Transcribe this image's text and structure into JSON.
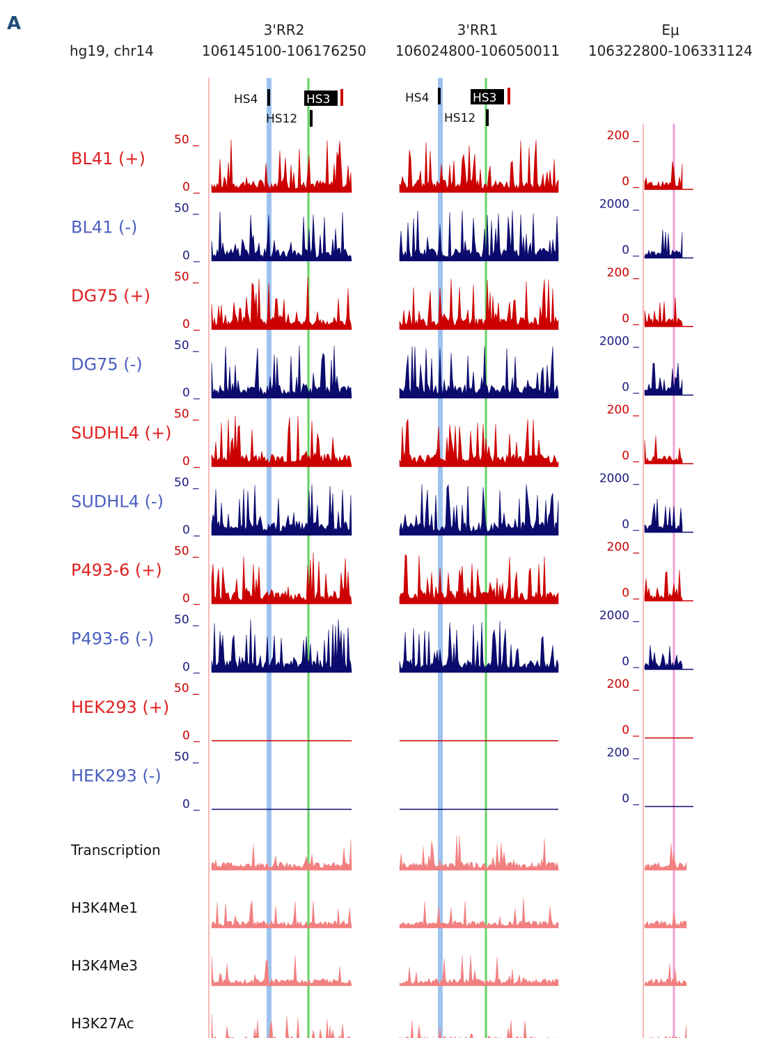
{
  "figure": {
    "panel_letter": "A",
    "assembly": "hg19, chr14",
    "regions": [
      {
        "name": "3'RR2",
        "coords": "106145100-106176250"
      },
      {
        "name": "3'RR1",
        "coords": "106024800-106050011"
      },
      {
        "name": "Eμ",
        "coords": "106322800-106331124"
      }
    ],
    "hs_sites": [
      {
        "label": "HS4",
        "highlight": false
      },
      {
        "label": "HS3",
        "highlight": true
      },
      {
        "label": "HS12",
        "highlight": false
      }
    ],
    "scale_zero": "0",
    "tracks": [
      {
        "label": "BL41 (+)",
        "strand": "+",
        "max_3rr": "50",
        "max_emu": "200"
      },
      {
        "label": "BL41 (-)",
        "strand": "-",
        "max_3rr": "50",
        "max_emu": "2000"
      },
      {
        "label": "DG75 (+)",
        "strand": "+",
        "max_3rr": "50",
        "max_emu": "200"
      },
      {
        "label": "DG75 (-)",
        "strand": "-",
        "max_3rr": "50",
        "max_emu": "2000"
      },
      {
        "label": "SUDHL4 (+)",
        "strand": "+",
        "max_3rr": "50",
        "max_emu": "200"
      },
      {
        "label": "SUDHL4 (-)",
        "strand": "-",
        "max_3rr": "50",
        "max_emu": "2000"
      },
      {
        "label": "P493-6 (+)",
        "strand": "+",
        "max_3rr": "50",
        "max_emu": "200"
      },
      {
        "label": "P493-6 (-)",
        "strand": "-",
        "max_3rr": "50",
        "max_emu": "2000"
      },
      {
        "label": "HEK293 (+)",
        "strand": "+",
        "max_3rr": "50",
        "max_emu": "200"
      },
      {
        "label": "HEK293 (-)",
        "strand": "-",
        "max_3rr": "50",
        "max_emu": "200"
      }
    ],
    "encode_tracks": [
      {
        "label": "Transcription"
      },
      {
        "label": "H3K4Me1"
      },
      {
        "label": "H3K4Me3"
      },
      {
        "label": "H3K27Ac"
      }
    ],
    "colors": {
      "plus": "#cc0000",
      "minus": "#0b0b6e",
      "plus_label": "#e02020",
      "minus_label": "#4a5fc1",
      "scale_plus": "#cc0000",
      "scale_minus": "#1a1a80",
      "encode": "#f28080",
      "hs4_line": "#9ec3ef",
      "hs12_line": "#66d166",
      "emu_line": "#f0a0d8",
      "boundary": "#f4a0a0",
      "header_text": "#222222",
      "panel_letter": "#1f4e79"
    }
  }
}
